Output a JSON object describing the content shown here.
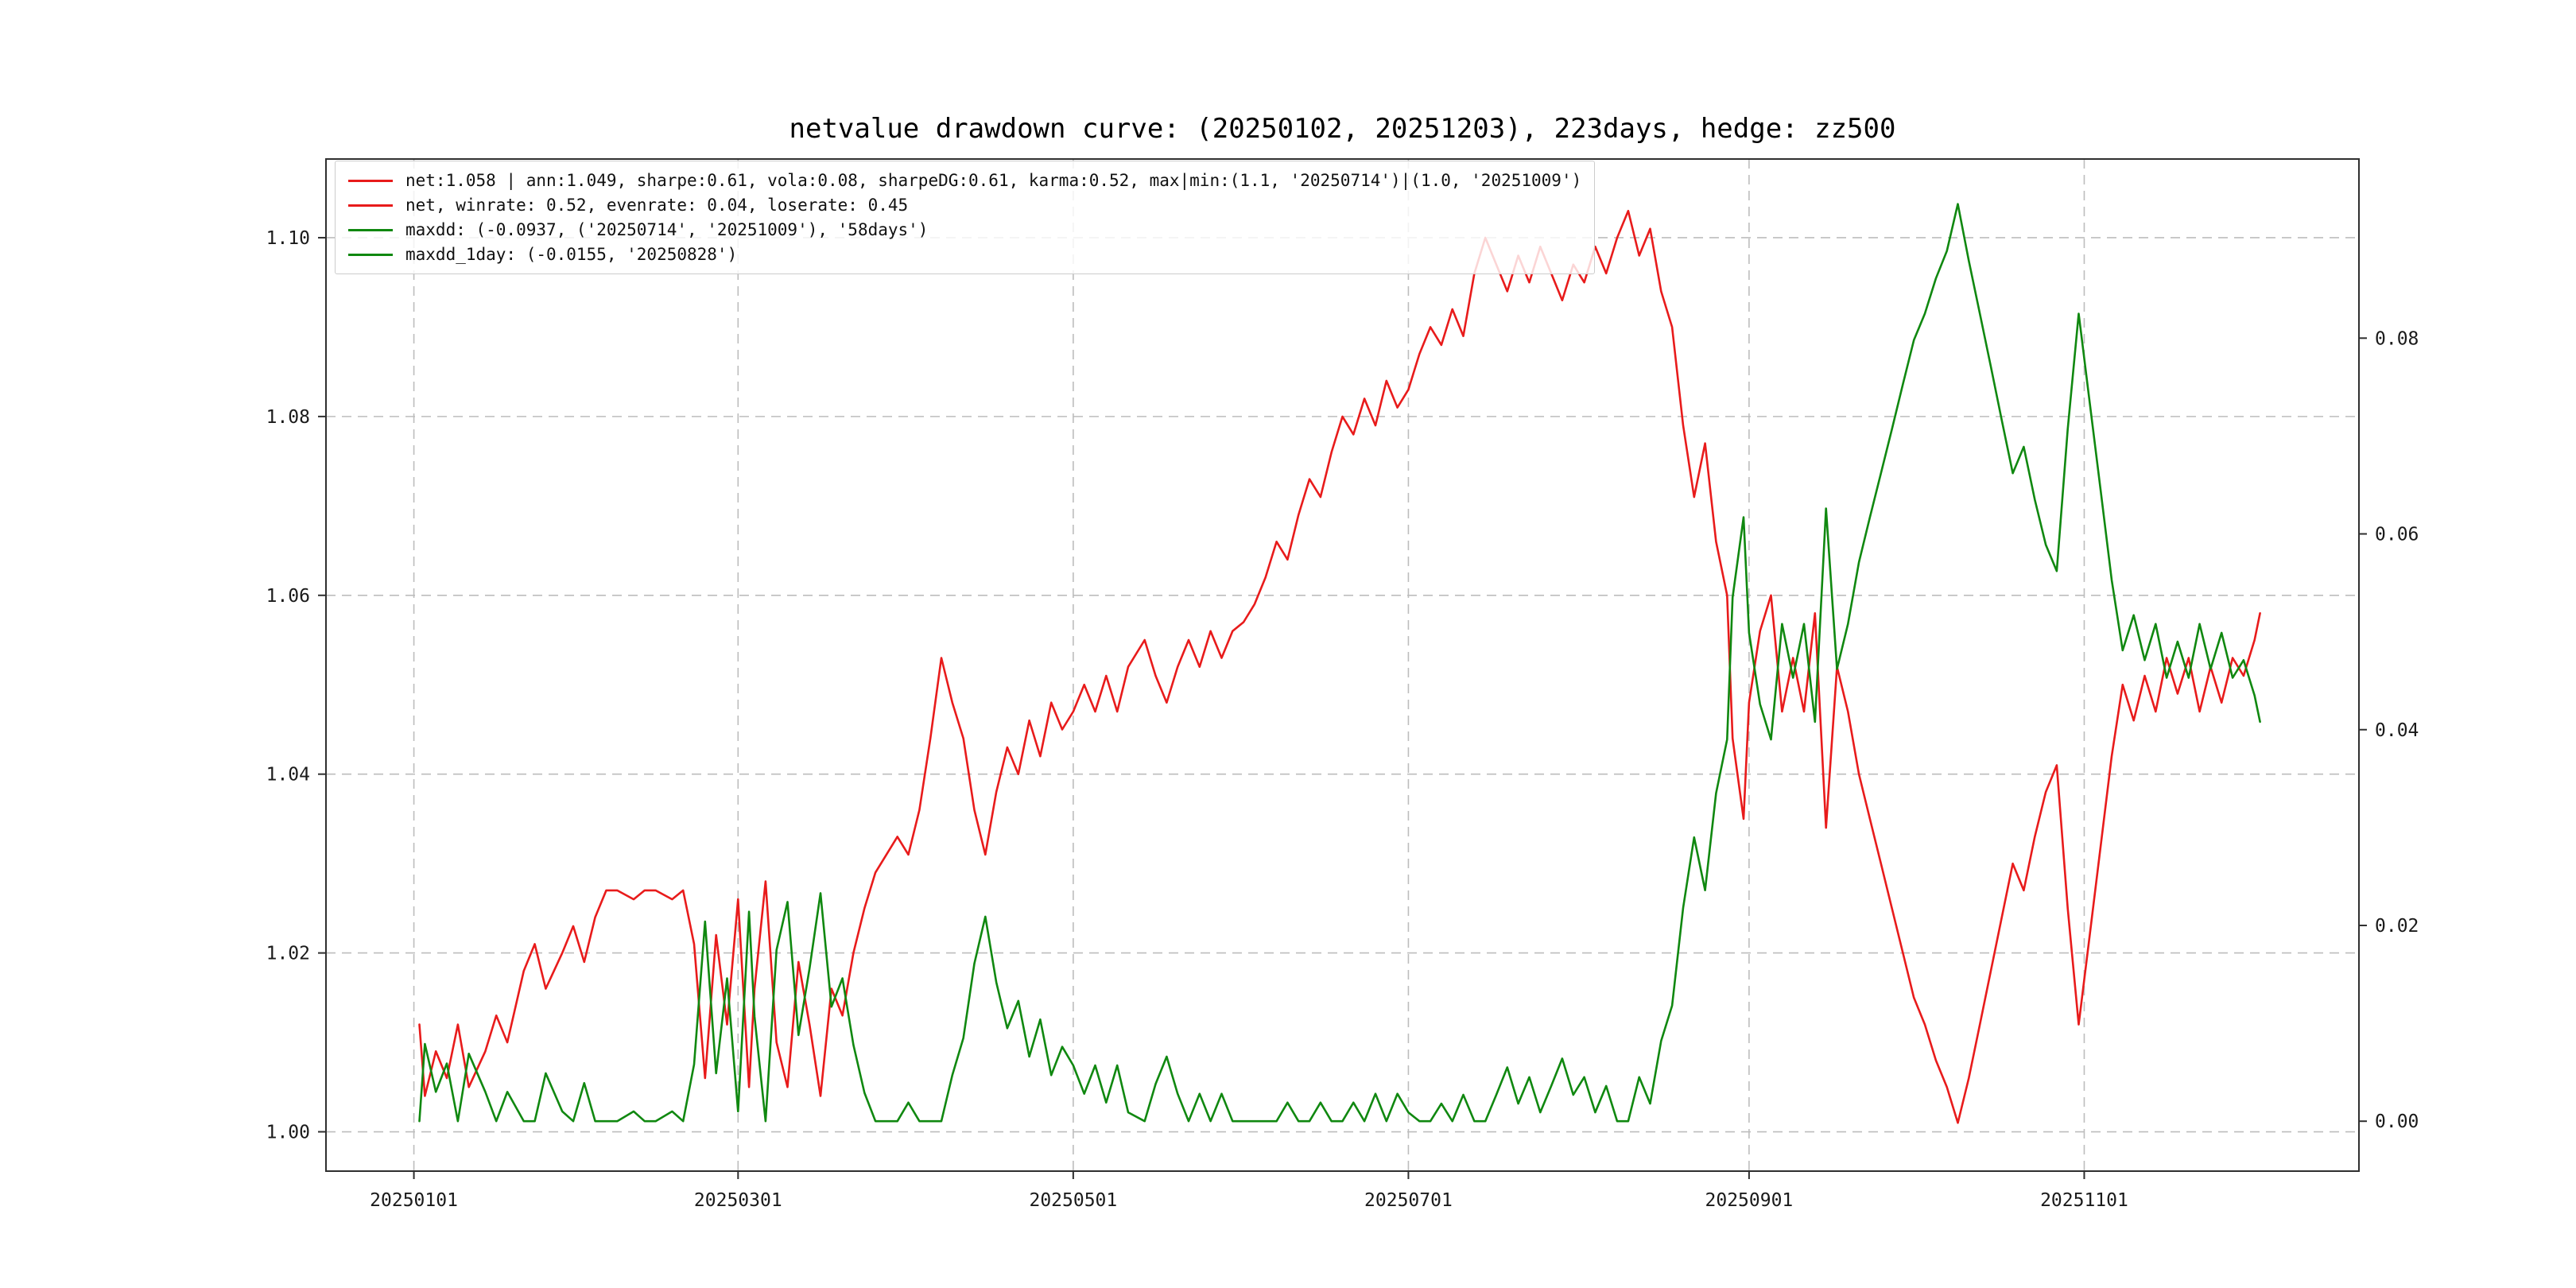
{
  "title": "netvalue drawdown curve: (20250102, 20251203), 223days, hedge: zz500",
  "colors": {
    "net": "#e81b1b",
    "drawdown": "#108810",
    "grid": "#bdbdbd",
    "axis": "#2f2f2f"
  },
  "legend": {
    "items": [
      {
        "series": "net",
        "label": "net:1.058 | ann:1.049, sharpe:0.61, vola:0.08, sharpeDG:0.61, karma:0.52, max|min:(1.1, '20250714')|(1.0, '20251009')"
      },
      {
        "series": "net",
        "label": "net, winrate: 0.52, evenrate: 0.04, loserate: 0.45"
      },
      {
        "series": "drawdown",
        "label": "maxdd: (-0.0937, ('20250714', '20251009'), '58days')"
      },
      {
        "series": "drawdown",
        "label": "maxdd_1day: (-0.0155, '20250828')"
      }
    ]
  },
  "chart_data": {
    "type": "line",
    "title": "netvalue drawdown curve: (20250102, 20251203), 223days, hedge: zz500",
    "x_unit": "days since 20250101",
    "xlim": [
      -16,
      354
    ],
    "grid": true,
    "legend_position": "upper-left",
    "x_ticks": [
      {
        "pos": 0,
        "label": "20250101"
      },
      {
        "pos": 59,
        "label": "20250301"
      },
      {
        "pos": 120,
        "label": "20250501"
      },
      {
        "pos": 181,
        "label": "20250701"
      },
      {
        "pos": 243,
        "label": "20250901"
      },
      {
        "pos": 304,
        "label": "20251101"
      }
    ],
    "left_axis": {
      "ylim": [
        0.9956,
        1.1088
      ],
      "ticks": [
        {
          "value": 1.0,
          "label": "1.00"
        },
        {
          "value": 1.02,
          "label": "1.02"
        },
        {
          "value": 1.04,
          "label": "1.04"
        },
        {
          "value": 1.06,
          "label": "1.06"
        },
        {
          "value": 1.08,
          "label": "1.08"
        },
        {
          "value": 1.1,
          "label": "1.10"
        }
      ]
    },
    "right_axis": {
      "ylim": [
        -0.0051,
        0.0983
      ],
      "ticks": [
        {
          "value": 0.0,
          "label": "0.00"
        },
        {
          "value": 0.02,
          "label": "0.02"
        },
        {
          "value": 0.04,
          "label": "0.04"
        },
        {
          "value": 0.06,
          "label": "0.06"
        },
        {
          "value": 0.08,
          "label": "0.08"
        }
      ]
    },
    "x": [
      1,
      2,
      4,
      6,
      8,
      10,
      13,
      15,
      17,
      20,
      22,
      24,
      27,
      29,
      31,
      33,
      35,
      37,
      40,
      42,
      44,
      47,
      49,
      51,
      53,
      55,
      57,
      59,
      61,
      62,
      64,
      66,
      68,
      70,
      72,
      74,
      76,
      78,
      80,
      82,
      84,
      86,
      88,
      90,
      92,
      94,
      96,
      98,
      100,
      102,
      104,
      106,
      108,
      110,
      112,
      114,
      116,
      118,
      120,
      122,
      124,
      126,
      128,
      130,
      133,
      135,
      137,
      139,
      141,
      143,
      145,
      147,
      149,
      151,
      153,
      155,
      157,
      159,
      161,
      163,
      165,
      167,
      169,
      171,
      173,
      175,
      177,
      179,
      181,
      183,
      185,
      187,
      189,
      191,
      193,
      195,
      197,
      199,
      201,
      203,
      205,
      207,
      209,
      211,
      213,
      215,
      217,
      219,
      221,
      223,
      225,
      227,
      229,
      231,
      233,
      235,
      237,
      239,
      240,
      242,
      243,
      245,
      247,
      249,
      251,
      253,
      255,
      257,
      259,
      261,
      263,
      265,
      267,
      269,
      271,
      273,
      275,
      277,
      279,
      281,
      283,
      285,
      287,
      289,
      291,
      293,
      295,
      297,
      299,
      301,
      303,
      305,
      307,
      309,
      311,
      313,
      315,
      317,
      319,
      321,
      323,
      325,
      327,
      329,
      331,
      333,
      335,
      336
    ],
    "series": [
      {
        "name": "net",
        "axis": "left",
        "color_key": "net",
        "y": [
          1.012,
          1.004,
          1.009,
          1.006,
          1.012,
          1.005,
          1.009,
          1.013,
          1.01,
          1.018,
          1.021,
          1.016,
          1.02,
          1.023,
          1.019,
          1.024,
          1.027,
          1.027,
          1.026,
          1.027,
          1.027,
          1.026,
          1.027,
          1.021,
          1.006,
          1.022,
          1.012,
          1.026,
          1.005,
          1.016,
          1.028,
          1.01,
          1.005,
          1.019,
          1.012,
          1.004,
          1.016,
          1.013,
          1.02,
          1.025,
          1.029,
          1.031,
          1.033,
          1.031,
          1.036,
          1.044,
          1.053,
          1.048,
          1.044,
          1.036,
          1.031,
          1.038,
          1.043,
          1.04,
          1.046,
          1.042,
          1.048,
          1.045,
          1.047,
          1.05,
          1.047,
          1.051,
          1.047,
          1.052,
          1.055,
          1.051,
          1.048,
          1.052,
          1.055,
          1.052,
          1.056,
          1.053,
          1.056,
          1.057,
          1.059,
          1.062,
          1.066,
          1.064,
          1.069,
          1.073,
          1.071,
          1.076,
          1.08,
          1.078,
          1.082,
          1.079,
          1.084,
          1.081,
          1.083,
          1.087,
          1.09,
          1.088,
          1.092,
          1.089,
          1.096,
          1.1,
          1.097,
          1.094,
          1.098,
          1.095,
          1.099,
          1.096,
          1.093,
          1.097,
          1.095,
          1.099,
          1.096,
          1.1,
          1.103,
          1.098,
          1.101,
          1.094,
          1.09,
          1.079,
          1.071,
          1.077,
          1.066,
          1.06,
          1.044,
          1.035,
          1.048,
          1.056,
          1.06,
          1.047,
          1.053,
          1.047,
          1.058,
          1.034,
          1.052,
          1.047,
          1.04,
          1.035,
          1.03,
          1.025,
          1.02,
          1.015,
          1.012,
          1.008,
          1.005,
          1.001,
          1.006,
          1.012,
          1.018,
          1.024,
          1.03,
          1.027,
          1.033,
          1.038,
          1.041,
          1.025,
          1.012,
          1.022,
          1.032,
          1.042,
          1.05,
          1.046,
          1.051,
          1.047,
          1.053,
          1.049,
          1.053,
          1.047,
          1.052,
          1.048,
          1.053,
          1.051,
          1.055,
          1.058
        ]
      },
      {
        "name": "drawdown",
        "axis": "right",
        "color_key": "drawdown",
        "y": [
          0,
          0.0079,
          0.003,
          0.0059,
          0,
          0.0069,
          0.003,
          0,
          0.003,
          0,
          0,
          0.0049,
          0.001,
          0,
          0.0039,
          0,
          0,
          0,
          0.001,
          0,
          0,
          0.001,
          0,
          0.0058,
          0.0204,
          0.0049,
          0.0146,
          0.001,
          0.0214,
          0.0107,
          0,
          0.0175,
          0.0224,
          0.0088,
          0.0156,
          0.0233,
          0.0117,
          0.0146,
          0.0078,
          0.0029,
          0,
          0,
          0,
          0.0019,
          0,
          0,
          0,
          0.0047,
          0.0085,
          0.0161,
          0.0209,
          0.0142,
          0.0095,
          0.0123,
          0.0066,
          0.0104,
          0.0047,
          0.0076,
          0.0057,
          0.0028,
          0.0057,
          0.0019,
          0.0057,
          0.0009,
          0,
          0.0038,
          0.0066,
          0.0028,
          0,
          0.0028,
          0,
          0.0028,
          0,
          0,
          0,
          0,
          0,
          0.0019,
          0,
          0,
          0.0019,
          0,
          0,
          0.0019,
          0,
          0.0028,
          0,
          0.0028,
          0.0009,
          0,
          0,
          0.0018,
          0,
          0.0027,
          0,
          0,
          0.0027,
          0.0055,
          0.0018,
          0.0045,
          0.0009,
          0.0036,
          0.0064,
          0.0027,
          0.0045,
          0.0009,
          0.0036,
          0,
          0,
          0.0045,
          0.0018,
          0.0082,
          0.0118,
          0.0218,
          0.029,
          0.0236,
          0.0335,
          0.039,
          0.0535,
          0.0617,
          0.0499,
          0.0426,
          0.039,
          0.0508,
          0.0453,
          0.0508,
          0.0408,
          0.0626,
          0.0462,
          0.0508,
          0.0571,
          0.0617,
          0.0662,
          0.0707,
          0.0753,
          0.0798,
          0.0825,
          0.0861,
          0.0889,
          0.0937,
          0.0879,
          0.0825,
          0.0771,
          0.0716,
          0.0662,
          0.0689,
          0.0635,
          0.0589,
          0.0562,
          0.0707,
          0.0825,
          0.0734,
          0.0644,
          0.0553,
          0.0481,
          0.0517,
          0.0471,
          0.0508,
          0.0453,
          0.049,
          0.0453,
          0.0508,
          0.0462,
          0.0499,
          0.0453,
          0.0471,
          0.0435,
          0.0408
        ]
      }
    ]
  }
}
